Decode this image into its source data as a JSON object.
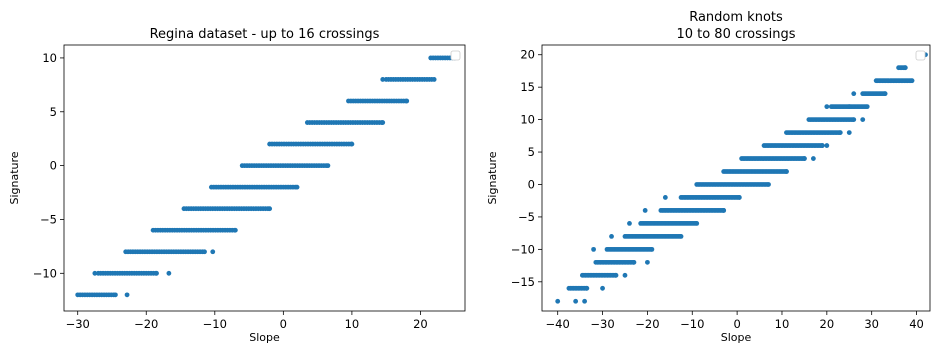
{
  "chart_data": [
    {
      "type": "scatter",
      "title_lines": [
        "Regina dataset - up to 16 crossings"
      ],
      "xlabel": "Slope",
      "ylabel": "Signature",
      "xlim": [
        -32,
        26.5
      ],
      "ylim": [
        -13.5,
        11.2
      ],
      "xticks": [
        -30,
        -20,
        -10,
        0,
        10,
        20
      ],
      "yticks": [
        -10,
        -5,
        0,
        5,
        10
      ],
      "grid": false,
      "legend": "top-right, empty",
      "color": "#1f77b4",
      "points": [
        {
          "y": -12,
          "x_min": -30,
          "x_max": -24.5,
          "outliers": [
            -22.8
          ]
        },
        {
          "y": -10,
          "x_min": -27,
          "x_max": -18.5,
          "outliers": [
            -27.5,
            -16.7
          ]
        },
        {
          "y": -8,
          "x_min": -23,
          "x_max": -11.5,
          "outliers": [
            -10.3
          ]
        },
        {
          "y": -6,
          "x_min": -19,
          "x_max": -7,
          "outliers": []
        },
        {
          "y": -4,
          "x_min": -14.5,
          "x_max": -2,
          "outliers": []
        },
        {
          "y": -2,
          "x_min": -10.5,
          "x_max": 2,
          "outliers": []
        },
        {
          "y": 0,
          "x_min": -6,
          "x_max": 6.5,
          "outliers": []
        },
        {
          "y": 2,
          "x_min": -2,
          "x_max": 10,
          "outliers": []
        },
        {
          "y": 4,
          "x_min": 3.5,
          "x_max": 14.5,
          "outliers": []
        },
        {
          "y": 6,
          "x_min": 9.5,
          "x_max": 18,
          "outliers": []
        },
        {
          "y": 8,
          "x_min": 15,
          "x_max": 22,
          "outliers": [
            14.5
          ]
        },
        {
          "y": 10,
          "x_min": 21.5,
          "x_max": 25,
          "outliers": []
        }
      ]
    },
    {
      "type": "scatter",
      "title_lines": [
        "Random knots",
        "10 to 80 crossings"
      ],
      "xlabel": "Slope",
      "ylabel": "Signature",
      "xlim": [
        -43.5,
        43
      ],
      "ylim": [
        -19.5,
        21.5
      ],
      "xticks": [
        -40,
        -30,
        -20,
        -10,
        0,
        10,
        20,
        30,
        40
      ],
      "yticks": [
        -15,
        -10,
        -5,
        0,
        5,
        10,
        15,
        20
      ],
      "grid": false,
      "legend": "top-right, empty",
      "color": "#1f77b4",
      "points": [
        {
          "y": -18,
          "x_min": -40,
          "x_max": -40,
          "outliers": [
            -36,
            -34
          ]
        },
        {
          "y": -16,
          "x_min": -37.5,
          "x_max": -33.5,
          "outliers": [
            -30
          ]
        },
        {
          "y": -14,
          "x_min": -34.5,
          "x_max": -27,
          "outliers": [
            -25
          ]
        },
        {
          "y": -12,
          "x_min": -31.5,
          "x_max": -23,
          "outliers": [
            -20
          ]
        },
        {
          "y": -10,
          "x_min": -29,
          "x_max": -19,
          "outliers": [
            -32
          ]
        },
        {
          "y": -8,
          "x_min": -25,
          "x_max": -12.5,
          "outliers": [
            -28
          ]
        },
        {
          "y": -6,
          "x_min": -21.5,
          "x_max": -9,
          "outliers": [
            -24
          ]
        },
        {
          "y": -4,
          "x_min": -17,
          "x_max": -3,
          "outliers": [
            -20.5
          ]
        },
        {
          "y": -2,
          "x_min": -12.5,
          "x_max": 0.5,
          "outliers": [
            -16
          ]
        },
        {
          "y": 0,
          "x_min": -9,
          "x_max": 7,
          "outliers": []
        },
        {
          "y": 2,
          "x_min": -3,
          "x_max": 11,
          "outliers": []
        },
        {
          "y": 4,
          "x_min": 1,
          "x_max": 15,
          "outliers": [
            17
          ]
        },
        {
          "y": 6,
          "x_min": 6,
          "x_max": 19,
          "outliers": [
            20
          ]
        },
        {
          "y": 8,
          "x_min": 11,
          "x_max": 23,
          "outliers": [
            25
          ]
        },
        {
          "y": 10,
          "x_min": 16,
          "x_max": 26,
          "outliers": [
            28
          ]
        },
        {
          "y": 12,
          "x_min": 21,
          "x_max": 29,
          "outliers": [
            20,
            25
          ]
        },
        {
          "y": 14,
          "x_min": 28,
          "x_max": 33,
          "outliers": [
            26
          ]
        },
        {
          "y": 16,
          "x_min": 31,
          "x_max": 39,
          "outliers": []
        },
        {
          "y": 18,
          "x_min": 36,
          "x_max": 37.5,
          "outliers": []
        },
        {
          "y": 20,
          "x_min": 41,
          "x_max": 42,
          "outliers": []
        }
      ]
    }
  ]
}
